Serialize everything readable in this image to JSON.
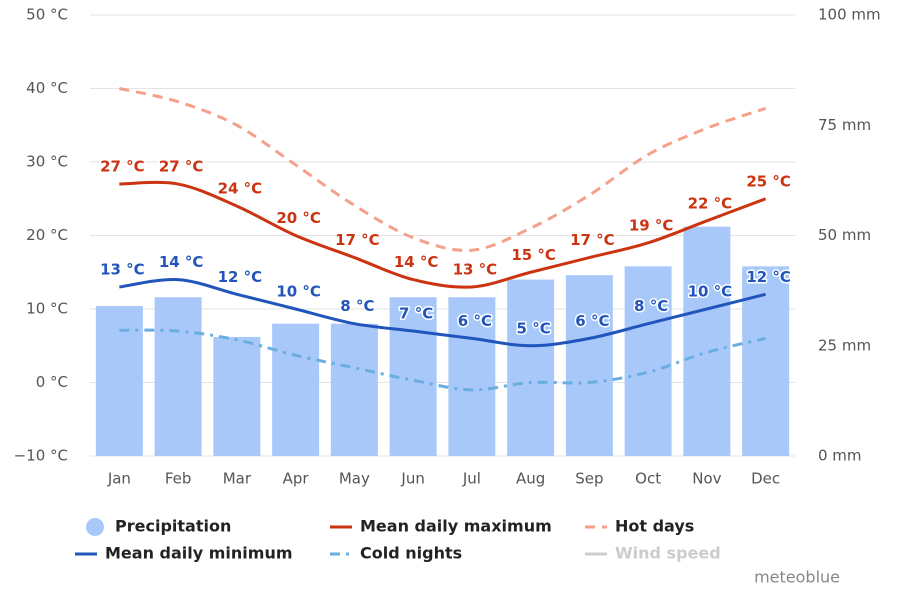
{
  "chart_data": {
    "type": "combo",
    "categories": [
      "Jan",
      "Feb",
      "Mar",
      "Apr",
      "May",
      "Jun",
      "Jul",
      "Aug",
      "Sep",
      "Oct",
      "Nov",
      "Dec"
    ],
    "ylim": [
      -10,
      50
    ],
    "yticks": [
      {
        "value": -10,
        "label": "−10 °C"
      },
      {
        "value": 0,
        "label": "0 °C"
      },
      {
        "value": 10,
        "label": "10 °C"
      },
      {
        "value": 20,
        "label": "20 °C"
      },
      {
        "value": 30,
        "label": "30 °C"
      },
      {
        "value": 40,
        "label": "40 °C"
      },
      {
        "value": 50,
        "label": "50 °C"
      }
    ],
    "y2lim": [
      0,
      100
    ],
    "y2ticks": [
      {
        "value": 0,
        "label": "0 mm"
      },
      {
        "value": 25,
        "label": "25 mm"
      },
      {
        "value": 50,
        "label": "50 mm"
      },
      {
        "value": 75,
        "label": "75 mm"
      },
      {
        "value": 100,
        "label": "100 mm"
      }
    ],
    "grid": true,
    "series": [
      {
        "name": "Precipitation",
        "type": "bar",
        "axis": "y2",
        "color": "#a9c8fa",
        "values": [
          34,
          36,
          27,
          30,
          30,
          36,
          36,
          40,
          41,
          43,
          52,
          43
        ]
      },
      {
        "name": "Mean daily maximum",
        "type": "line",
        "color": "#cc3311",
        "dash": "solid",
        "values": [
          27,
          27,
          24,
          20,
          17,
          14,
          13,
          15,
          17,
          19,
          22,
          25
        ],
        "value_labels": [
          "27 °C",
          "27 °C",
          "24 °C",
          "20 °C",
          "17 °C",
          "14 °C",
          "13 °C",
          "15 °C",
          "17 °C",
          "19 °C",
          "22 °C",
          "25 °C"
        ]
      },
      {
        "name": "Hot days",
        "type": "line",
        "color": "#f4a08a",
        "dash": "dashed",
        "values": [
          40,
          38.2,
          35,
          29.6,
          24.1,
          19.7,
          18,
          21,
          25.5,
          31,
          34.6,
          37.3
        ]
      },
      {
        "name": "Mean daily minimum",
        "type": "line",
        "color": "#2255bb",
        "dash": "solid",
        "values": [
          13,
          14,
          12,
          10,
          8,
          7,
          6,
          5,
          6,
          8,
          10,
          12
        ],
        "value_labels": [
          "13 °C",
          "14 °C",
          "12 °C",
          "10 °C",
          "8 °C",
          "7 °C",
          "6 °C",
          "5 °C",
          "6 °C",
          "8 °C",
          "10 °C",
          "12 °C"
        ]
      },
      {
        "name": "Cold nights",
        "type": "line",
        "color": "#6aaee0",
        "dash": "dashdot",
        "values": [
          7.1,
          7,
          5.8,
          3.7,
          2,
          0.3,
          -1,
          0,
          0,
          1.4,
          4.1,
          6
        ]
      },
      {
        "name": "Wind speed",
        "type": "line",
        "color": "#cccccc",
        "visible": false
      }
    ],
    "credit": "meteoblue"
  }
}
